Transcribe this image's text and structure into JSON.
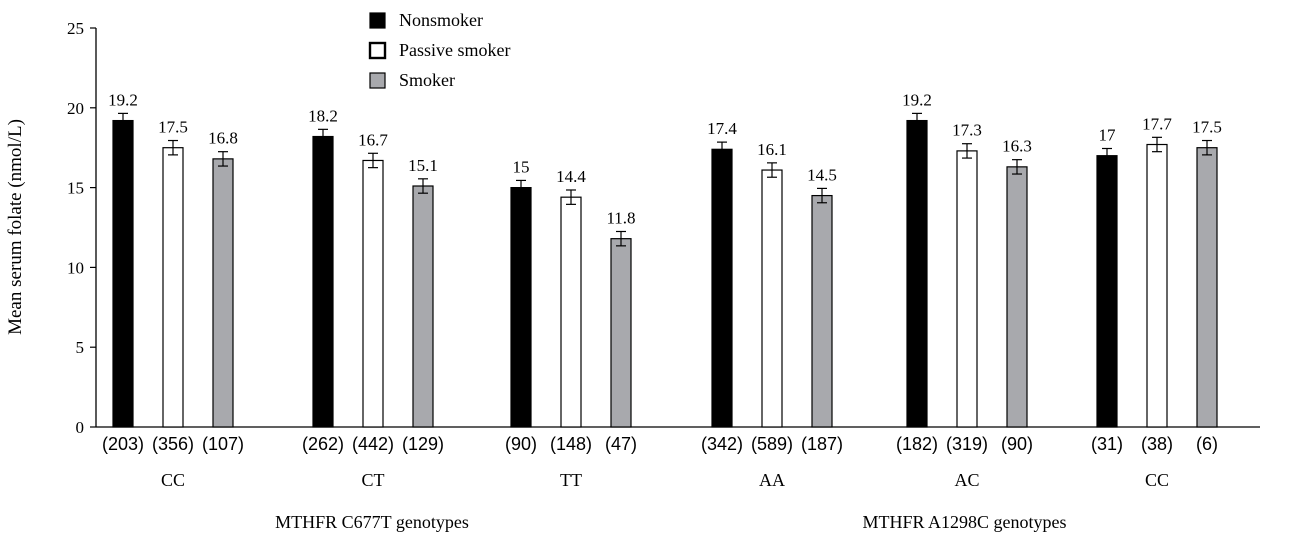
{
  "chart_data": {
    "type": "bar",
    "ylabel": "Mean serum folate (nmol/L)",
    "ylim": [
      0,
      25
    ],
    "yticks": [
      0,
      5,
      10,
      15,
      20,
      25
    ],
    "grid": false,
    "legend_position": "top-center",
    "groups": [
      {
        "label": "MTHFR C677T genotypes",
        "categories": [
          0,
          1,
          2
        ]
      },
      {
        "label": "MTHFR  A1298C genotypes",
        "categories": [
          3,
          4,
          5
        ]
      }
    ],
    "categories": [
      "CC",
      "CT",
      "TT",
      "AA",
      "AC",
      "CC"
    ],
    "series": [
      {
        "name": "Nonsmoker",
        "color": "#000000",
        "values": [
          19.2,
          18.2,
          15,
          17.4,
          19.2,
          17
        ],
        "labels": [
          "19.2",
          "18.2",
          "15",
          "17.4",
          "19.2",
          "17"
        ],
        "counts": [
          "(203)",
          "(262)",
          "(90)",
          "(342)",
          "(182)",
          "(31)"
        ],
        "error": [
          0.45,
          0.45,
          0.45,
          0.45,
          0.45,
          0.45
        ]
      },
      {
        "name": "Passive smoker",
        "color": "#ffffff",
        "values": [
          17.5,
          16.7,
          14.4,
          16.1,
          17.3,
          17.7
        ],
        "labels": [
          "17.5",
          "16.7",
          "14.4",
          "16.1",
          "17.3",
          "17.7"
        ],
        "counts": [
          "(356)",
          "(442)",
          "(148)",
          "(589)",
          "(319)",
          "(38)"
        ],
        "error": [
          0.45,
          0.45,
          0.45,
          0.45,
          0.45,
          0.45
        ]
      },
      {
        "name": "Smoker",
        "color": "#a8a9ad",
        "values": [
          16.8,
          15.1,
          11.8,
          14.5,
          16.3,
          17.5
        ],
        "labels": [
          "16.8",
          "15.1",
          "11.8",
          "14.5",
          "16.3",
          "17.5"
        ],
        "counts": [
          "(107)",
          "(129)",
          "(47)",
          "(187)",
          "(90)",
          "(6)"
        ],
        "error": [
          0.45,
          0.45,
          0.45,
          0.45,
          0.45,
          0.45
        ]
      }
    ]
  }
}
